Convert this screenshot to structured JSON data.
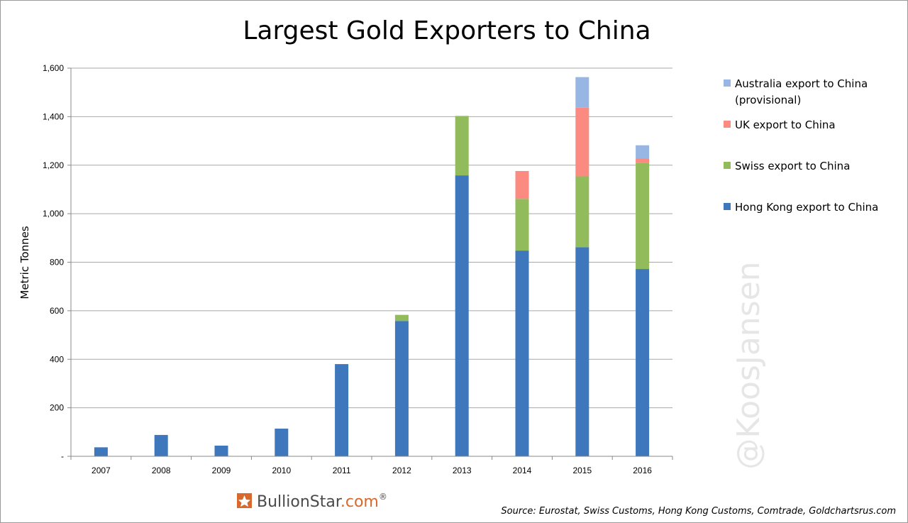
{
  "chart_data": {
    "type": "bar",
    "stacked": true,
    "title": "Largest Gold Exporters to China",
    "ylabel": "Metric Tonnes",
    "xlabel": "",
    "categories": [
      "2007",
      "2008",
      "2009",
      "2010",
      "2011",
      "2012",
      "2013",
      "2014",
      "2015",
      "2016"
    ],
    "ylim": [
      0,
      1600
    ],
    "yticks": [
      {
        "value": 0,
        "label": "-"
      },
      {
        "value": 200,
        "label": "200"
      },
      {
        "value": 400,
        "label": "400"
      },
      {
        "value": 600,
        "label": "600"
      },
      {
        "value": 800,
        "label": "800"
      },
      {
        "value": 1000,
        "label": "1,000"
      },
      {
        "value": 1200,
        "label": "1,200"
      },
      {
        "value": 1400,
        "label": "1,400"
      },
      {
        "value": 1600,
        "label": "1,600"
      }
    ],
    "grid": "horizontal",
    "legend_position": "right",
    "series": [
      {
        "name": "Hong Kong export to China",
        "color": "#3e77bb",
        "values": [
          37,
          88,
          44,
          114,
          380,
          558,
          1158,
          848,
          862,
          772
        ]
      },
      {
        "name": "Swiss export to China",
        "color": "#92bc5b",
        "values": [
          0,
          0,
          0,
          0,
          0,
          25,
          245,
          213,
          292,
          438
        ]
      },
      {
        "name": "UK export to China",
        "color": "#fb8a80",
        "values": [
          0,
          0,
          0,
          0,
          0,
          0,
          0,
          115,
          283,
          17
        ]
      },
      {
        "name": "Australia export to China (provisional)",
        "legend_lines": [
          "Australia export to China",
          "(provisional)"
        ],
        "color": "#98b6e3",
        "values": [
          0,
          0,
          0,
          0,
          0,
          0,
          0,
          0,
          126,
          55
        ]
      }
    ]
  },
  "footer": {
    "source": "Source: Eurostat, Swiss Customs, Hong Kong Customs, Comtrade, Goldchartsrus.com",
    "brand_main": "BullionStar",
    "brand_suffix": ".com",
    "brand_reg": "®",
    "brand_icon": "bullionstar-star-logo-icon",
    "brand_color": "#4a4a4a",
    "brand_accent": "#d8682b"
  },
  "watermark": "@KoosJansen"
}
